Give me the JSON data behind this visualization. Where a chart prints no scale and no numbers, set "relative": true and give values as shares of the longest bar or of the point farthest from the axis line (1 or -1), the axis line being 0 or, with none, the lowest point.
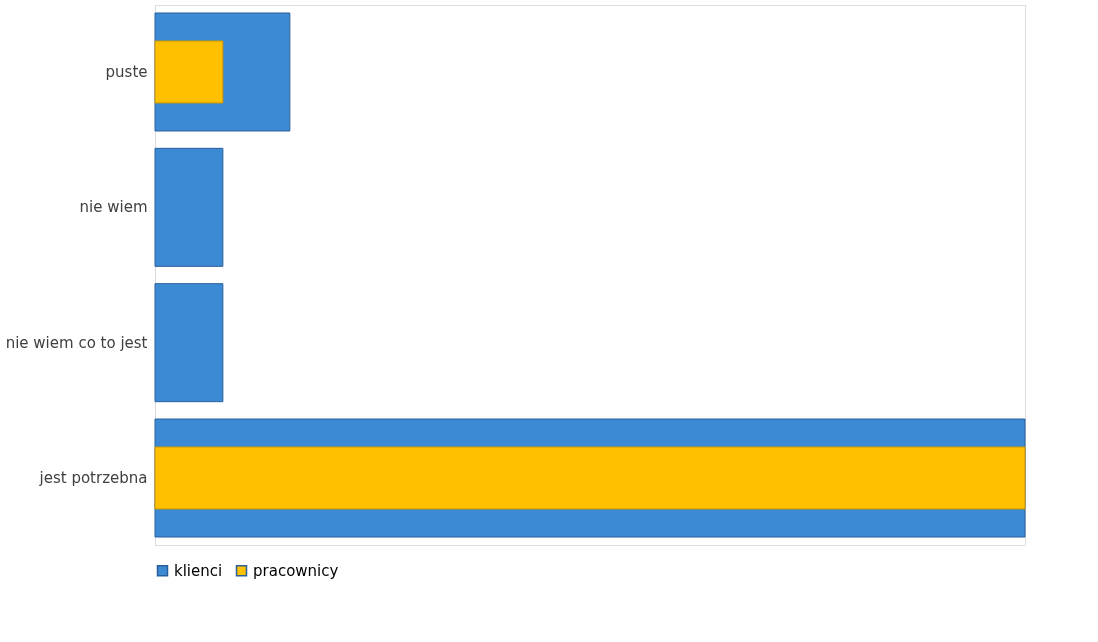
{
  "chart_data": {
    "type": "bar",
    "orientation": "horizontal",
    "relative": true,
    "categories": [
      "puste",
      "nie wiem",
      "nie wiem co to jest",
      "jest potrzebna"
    ],
    "series": [
      {
        "name": "klienci",
        "color": "#3d8ad4",
        "values": [
          0.155,
          0.078,
          0.078,
          1
        ]
      },
      {
        "name": "pracownicy",
        "color": "#ffc000",
        "values": [
          0.078,
          null,
          null,
          1
        ]
      }
    ],
    "legend": "bottom",
    "grid": false
  }
}
